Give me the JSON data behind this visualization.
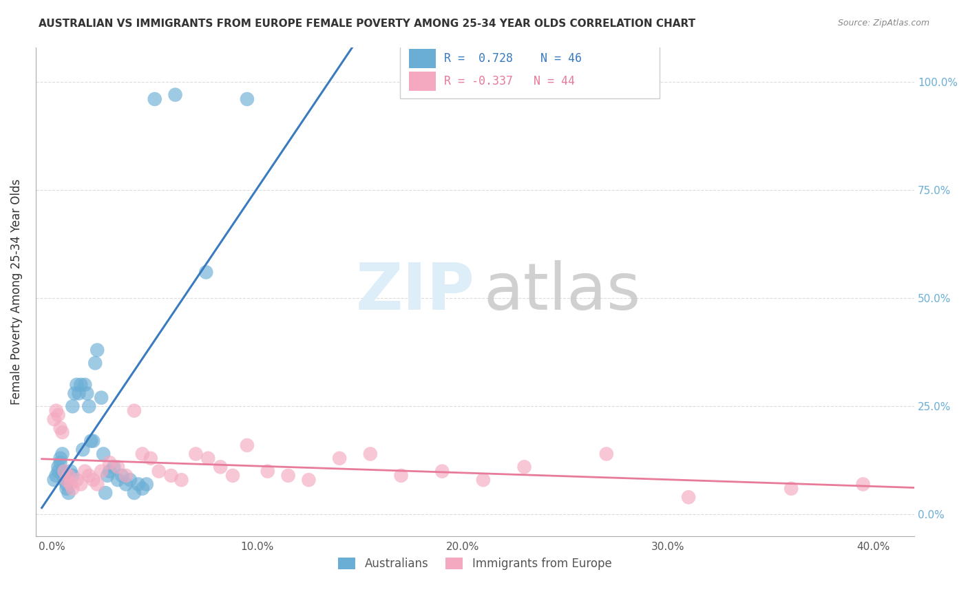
{
  "title": "AUSTRALIAN VS IMMIGRANTS FROM EUROPE FEMALE POVERTY AMONG 25-34 YEAR OLDS CORRELATION CHART",
  "source": "Source: ZipAtlas.com",
  "ylabel": "Female Poverty Among 25-34 Year Olds",
  "xlabel_ticks": [
    "0.0%",
    "10.0%",
    "20.0%",
    "30.0%",
    "40.0%"
  ],
  "xlabel_vals": [
    0.0,
    0.1,
    0.2,
    0.3,
    0.4
  ],
  "ylabel_vals": [
    0.0,
    0.25,
    0.5,
    0.75,
    1.0
  ],
  "ylim": [
    -0.05,
    1.08
  ],
  "xlim": [
    -0.008,
    0.42
  ],
  "r_australian": 0.728,
  "n_australian": 46,
  "r_europe": -0.337,
  "n_europe": 44,
  "color_australian": "#6aaed6",
  "color_europe": "#f4a9c0",
  "color_australian_line": "#3a7bbf",
  "color_europe_line": "#e87a9a",
  "legend_label_1": "Australians",
  "legend_label_2": "Immigrants from Europe",
  "australian_x": [
    0.001,
    0.002,
    0.003,
    0.003,
    0.004,
    0.004,
    0.005,
    0.005,
    0.006,
    0.006,
    0.007,
    0.007,
    0.008,
    0.009,
    0.01,
    0.01,
    0.011,
    0.012,
    0.013,
    0.014,
    0.015,
    0.016,
    0.017,
    0.018,
    0.019,
    0.02,
    0.021,
    0.022,
    0.024,
    0.025,
    0.026,
    0.027,
    0.028,
    0.03,
    0.032,
    0.034,
    0.036,
    0.038,
    0.04,
    0.042,
    0.044,
    0.046,
    0.05,
    0.06,
    0.075,
    0.095
  ],
  "australian_y": [
    0.08,
    0.09,
    0.1,
    0.11,
    0.12,
    0.13,
    0.14,
    0.1,
    0.08,
    0.09,
    0.07,
    0.06,
    0.05,
    0.1,
    0.25,
    0.09,
    0.28,
    0.3,
    0.28,
    0.3,
    0.15,
    0.3,
    0.28,
    0.25,
    0.17,
    0.17,
    0.35,
    0.38,
    0.27,
    0.14,
    0.05,
    0.09,
    0.1,
    0.11,
    0.08,
    0.09,
    0.07,
    0.08,
    0.05,
    0.07,
    0.06,
    0.07,
    0.96,
    0.97,
    0.56,
    0.96
  ],
  "europe_x": [
    0.001,
    0.002,
    0.003,
    0.004,
    0.005,
    0.006,
    0.007,
    0.008,
    0.009,
    0.01,
    0.012,
    0.014,
    0.016,
    0.018,
    0.02,
    0.022,
    0.024,
    0.028,
    0.032,
    0.036,
    0.04,
    0.044,
    0.048,
    0.052,
    0.058,
    0.063,
    0.07,
    0.076,
    0.082,
    0.088,
    0.095,
    0.105,
    0.115,
    0.125,
    0.14,
    0.155,
    0.17,
    0.19,
    0.21,
    0.23,
    0.27,
    0.31,
    0.36,
    0.395
  ],
  "europe_y": [
    0.22,
    0.24,
    0.23,
    0.2,
    0.19,
    0.1,
    0.08,
    0.09,
    0.07,
    0.06,
    0.08,
    0.07,
    0.1,
    0.09,
    0.08,
    0.07,
    0.1,
    0.12,
    0.11,
    0.09,
    0.24,
    0.14,
    0.13,
    0.1,
    0.09,
    0.08,
    0.14,
    0.13,
    0.11,
    0.09,
    0.16,
    0.1,
    0.09,
    0.08,
    0.13,
    0.14,
    0.09,
    0.1,
    0.08,
    0.11,
    0.14,
    0.04,
    0.06,
    0.07
  ]
}
